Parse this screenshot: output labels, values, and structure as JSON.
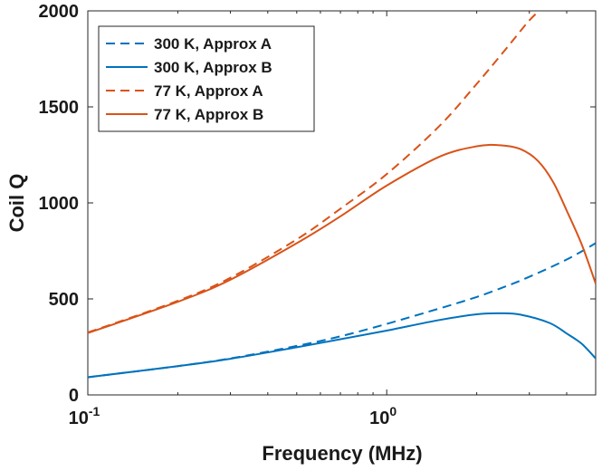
{
  "chart_data": {
    "type": "line",
    "title": "",
    "xlabel": "Frequency (MHz)",
    "ylabel": "Coil Q",
    "xscale": "log",
    "xlim": [
      0.1,
      5
    ],
    "ylim": [
      0,
      2000
    ],
    "xticks": [
      {
        "value": 0.1,
        "base": "10",
        "exp": "-1"
      },
      {
        "value": 1,
        "base": "10",
        "exp": "0"
      }
    ],
    "yticks": [
      {
        "value": 0,
        "label": "0"
      },
      {
        "value": 500,
        "label": "500"
      },
      {
        "value": 1000,
        "label": "1000"
      },
      {
        "value": 1500,
        "label": "1500"
      },
      {
        "value": 2000,
        "label": "2000"
      }
    ],
    "grid": false,
    "legend_position": "top-left",
    "series": [
      {
        "name": "300 K, Approx A",
        "color": "#0072BD",
        "dash": "dashed",
        "x": [
          0.1,
          0.2,
          0.3,
          0.5,
          0.7,
          1.0,
          1.5,
          2.0,
          2.5,
          3.0,
          4.0,
          5.0
        ],
        "y": [
          92,
          150,
          190,
          255,
          305,
          370,
          450,
          510,
          565,
          615,
          705,
          790
        ]
      },
      {
        "name": "300 K, Approx B",
        "color": "#0072BD",
        "dash": "solid",
        "x": [
          0.1,
          0.2,
          0.3,
          0.5,
          0.7,
          1.0,
          1.5,
          2.0,
          2.4,
          2.8,
          3.5,
          4.0,
          4.5,
          5.0
        ],
        "y": [
          92,
          150,
          188,
          248,
          290,
          335,
          390,
          420,
          425,
          418,
          375,
          320,
          265,
          190
        ]
      },
      {
        "name": "77 K, Approx A",
        "color": "#D95319",
        "dash": "dashed",
        "x": [
          0.1,
          0.2,
          0.3,
          0.5,
          0.7,
          1.0,
          1.5,
          2.0,
          2.5,
          3.0,
          3.4
        ],
        "y": [
          325,
          490,
          610,
          810,
          970,
          1150,
          1400,
          1620,
          1800,
          1950,
          2030
        ]
      },
      {
        "name": "77 K, Approx B",
        "color": "#D95319",
        "dash": "solid",
        "x": [
          0.1,
          0.2,
          0.3,
          0.5,
          0.7,
          1.0,
          1.5,
          2.0,
          2.4,
          2.8,
          3.2,
          3.6,
          4.0,
          4.5,
          5.0
        ],
        "y": [
          322,
          485,
          600,
          790,
          930,
          1090,
          1240,
          1295,
          1300,
          1280,
          1220,
          1110,
          960,
          780,
          580
        ]
      }
    ]
  }
}
